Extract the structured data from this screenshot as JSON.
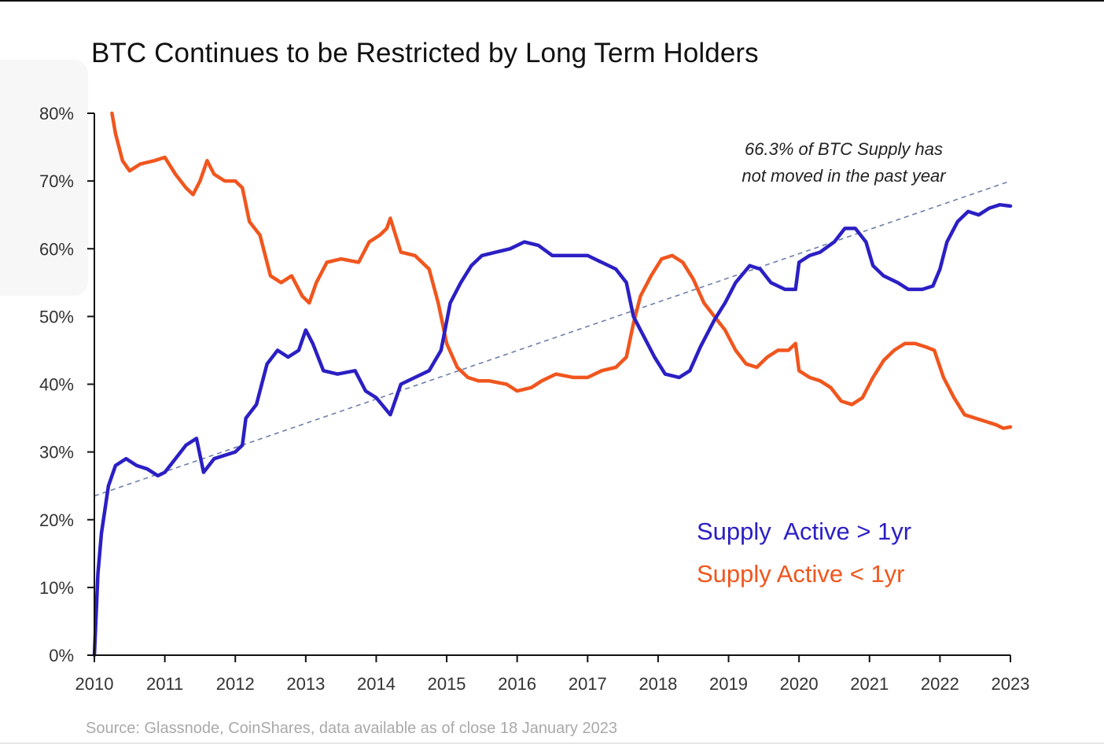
{
  "title": "BTC Continues to be Restricted by Long Term Holders",
  "source": "Source: Glassnode, CoinShares, data available as of close 18 January 2023",
  "annotation": {
    "line1": "66.3% of BTC Supply has",
    "line2": "not moved in the past year"
  },
  "colors": {
    "long_term": "#2b1fc4",
    "short_term": "#f0561e",
    "trendline": "#6e7fa8",
    "axis": "#111111"
  },
  "chart_data": {
    "type": "line",
    "title": "BTC Continues to be Restricted by Long Term Holders",
    "xlabel": "",
    "ylabel": "",
    "xlim": [
      2010,
      2023
    ],
    "ylim": [
      0,
      80
    ],
    "x_ticks": [
      "2010",
      "2011",
      "2012",
      "2013",
      "2014",
      "2015",
      "2016",
      "2017",
      "2018",
      "2019",
      "2020",
      "2021",
      "2022",
      "2023"
    ],
    "y_ticks": [
      "0%",
      "10%",
      "20%",
      "30%",
      "40%",
      "50%",
      "60%",
      "70%",
      "80%"
    ],
    "grid": false,
    "legend_position": "bottom-right",
    "series": [
      {
        "name": "Supply  Active > 1yr",
        "color": "#2b1fc4",
        "points": [
          [
            2010.0,
            0
          ],
          [
            2010.05,
            12
          ],
          [
            2010.1,
            18
          ],
          [
            2010.2,
            25
          ],
          [
            2010.3,
            28
          ],
          [
            2010.45,
            29
          ],
          [
            2010.6,
            28
          ],
          [
            2010.75,
            27.5
          ],
          [
            2010.9,
            26.5
          ],
          [
            2011.0,
            27
          ],
          [
            2011.15,
            29
          ],
          [
            2011.3,
            31
          ],
          [
            2011.45,
            32
          ],
          [
            2011.55,
            27
          ],
          [
            2011.7,
            29
          ],
          [
            2011.85,
            29.5
          ],
          [
            2012.0,
            30
          ],
          [
            2012.1,
            31
          ],
          [
            2012.15,
            35
          ],
          [
            2012.3,
            37
          ],
          [
            2012.45,
            43
          ],
          [
            2012.6,
            45
          ],
          [
            2012.75,
            44
          ],
          [
            2012.9,
            45
          ],
          [
            2013.0,
            48
          ],
          [
            2013.1,
            46
          ],
          [
            2013.25,
            42
          ],
          [
            2013.45,
            41.5
          ],
          [
            2013.7,
            42
          ],
          [
            2013.85,
            39
          ],
          [
            2014.0,
            38
          ],
          [
            2014.2,
            35.5
          ],
          [
            2014.35,
            40
          ],
          [
            2014.55,
            41
          ],
          [
            2014.75,
            42
          ],
          [
            2014.92,
            45
          ],
          [
            2015.05,
            52
          ],
          [
            2015.2,
            55
          ],
          [
            2015.35,
            57.5
          ],
          [
            2015.5,
            59
          ],
          [
            2015.7,
            59.5
          ],
          [
            2015.9,
            60
          ],
          [
            2016.1,
            61
          ],
          [
            2016.3,
            60.5
          ],
          [
            2016.5,
            59
          ],
          [
            2016.8,
            59
          ],
          [
            2017.0,
            59
          ],
          [
            2017.2,
            58
          ],
          [
            2017.4,
            57
          ],
          [
            2017.55,
            55
          ],
          [
            2017.65,
            50
          ],
          [
            2017.8,
            47
          ],
          [
            2017.95,
            44
          ],
          [
            2018.1,
            41.5
          ],
          [
            2018.3,
            41
          ],
          [
            2018.45,
            42
          ],
          [
            2018.6,
            45.5
          ],
          [
            2018.8,
            49.5
          ],
          [
            2018.95,
            52
          ],
          [
            2019.1,
            55
          ],
          [
            2019.3,
            57.5
          ],
          [
            2019.45,
            57
          ],
          [
            2019.6,
            55
          ],
          [
            2019.8,
            54
          ],
          [
            2019.95,
            54
          ],
          [
            2020.0,
            58
          ],
          [
            2020.15,
            59
          ],
          [
            2020.3,
            59.5
          ],
          [
            2020.5,
            61
          ],
          [
            2020.65,
            63
          ],
          [
            2020.8,
            63
          ],
          [
            2020.95,
            61
          ],
          [
            2021.05,
            57.5
          ],
          [
            2021.2,
            56
          ],
          [
            2021.4,
            55
          ],
          [
            2021.55,
            54
          ],
          [
            2021.75,
            54
          ],
          [
            2021.9,
            54.5
          ],
          [
            2022.0,
            57
          ],
          [
            2022.1,
            61
          ],
          [
            2022.25,
            64
          ],
          [
            2022.4,
            65.5
          ],
          [
            2022.55,
            65
          ],
          [
            2022.7,
            66
          ],
          [
            2022.85,
            66.5
          ],
          [
            2023.0,
            66.3
          ]
        ]
      },
      {
        "name": "Supply Active < 1yr",
        "color": "#f0561e",
        "points": [
          [
            2010.25,
            80
          ],
          [
            2010.3,
            77
          ],
          [
            2010.4,
            73
          ],
          [
            2010.5,
            71.5
          ],
          [
            2010.65,
            72.5
          ],
          [
            2010.85,
            73
          ],
          [
            2011.0,
            73.5
          ],
          [
            2011.15,
            71
          ],
          [
            2011.3,
            69
          ],
          [
            2011.4,
            68
          ],
          [
            2011.5,
            70
          ],
          [
            2011.6,
            73
          ],
          [
            2011.7,
            71
          ],
          [
            2011.85,
            70
          ],
          [
            2012.0,
            70
          ],
          [
            2012.1,
            69
          ],
          [
            2012.2,
            64
          ],
          [
            2012.35,
            62
          ],
          [
            2012.5,
            56
          ],
          [
            2012.65,
            55
          ],
          [
            2012.8,
            56
          ],
          [
            2012.95,
            53
          ],
          [
            2013.05,
            52
          ],
          [
            2013.15,
            55
          ],
          [
            2013.3,
            58
          ],
          [
            2013.5,
            58.5
          ],
          [
            2013.75,
            58
          ],
          [
            2013.9,
            61
          ],
          [
            2014.05,
            62
          ],
          [
            2014.15,
            63
          ],
          [
            2014.2,
            64.5
          ],
          [
            2014.35,
            59.5
          ],
          [
            2014.55,
            59
          ],
          [
            2014.75,
            57
          ],
          [
            2014.88,
            52
          ],
          [
            2015.0,
            46
          ],
          [
            2015.15,
            42.5
          ],
          [
            2015.3,
            41
          ],
          [
            2015.45,
            40.5
          ],
          [
            2015.6,
            40.5
          ],
          [
            2015.85,
            40
          ],
          [
            2016.0,
            39
          ],
          [
            2016.2,
            39.5
          ],
          [
            2016.35,
            40.5
          ],
          [
            2016.55,
            41.5
          ],
          [
            2016.8,
            41
          ],
          [
            2017.0,
            41
          ],
          [
            2017.2,
            42
          ],
          [
            2017.4,
            42.5
          ],
          [
            2017.55,
            44
          ],
          [
            2017.65,
            49
          ],
          [
            2017.75,
            53
          ],
          [
            2017.9,
            56
          ],
          [
            2018.05,
            58.5
          ],
          [
            2018.2,
            59
          ],
          [
            2018.35,
            58
          ],
          [
            2018.5,
            55.5
          ],
          [
            2018.65,
            52
          ],
          [
            2018.8,
            50
          ],
          [
            2018.95,
            48
          ],
          [
            2019.1,
            45
          ],
          [
            2019.25,
            43
          ],
          [
            2019.4,
            42.5
          ],
          [
            2019.55,
            44
          ],
          [
            2019.7,
            45
          ],
          [
            2019.85,
            45
          ],
          [
            2019.95,
            46
          ],
          [
            2020.0,
            42
          ],
          [
            2020.15,
            41
          ],
          [
            2020.3,
            40.5
          ],
          [
            2020.45,
            39.5
          ],
          [
            2020.6,
            37.5
          ],
          [
            2020.75,
            37
          ],
          [
            2020.9,
            38
          ],
          [
            2021.05,
            41
          ],
          [
            2021.2,
            43.5
          ],
          [
            2021.35,
            45
          ],
          [
            2021.5,
            46
          ],
          [
            2021.65,
            46
          ],
          [
            2021.8,
            45.5
          ],
          [
            2021.92,
            45
          ],
          [
            2022.05,
            41
          ],
          [
            2022.2,
            38
          ],
          [
            2022.35,
            35.5
          ],
          [
            2022.5,
            35
          ],
          [
            2022.65,
            34.5
          ],
          [
            2022.8,
            34
          ],
          [
            2022.9,
            33.5
          ],
          [
            2023.0,
            33.7
          ]
        ]
      }
    ],
    "trendline": {
      "from": [
        2010.0,
        23.5
      ],
      "to": [
        2023.0,
        70
      ]
    }
  }
}
